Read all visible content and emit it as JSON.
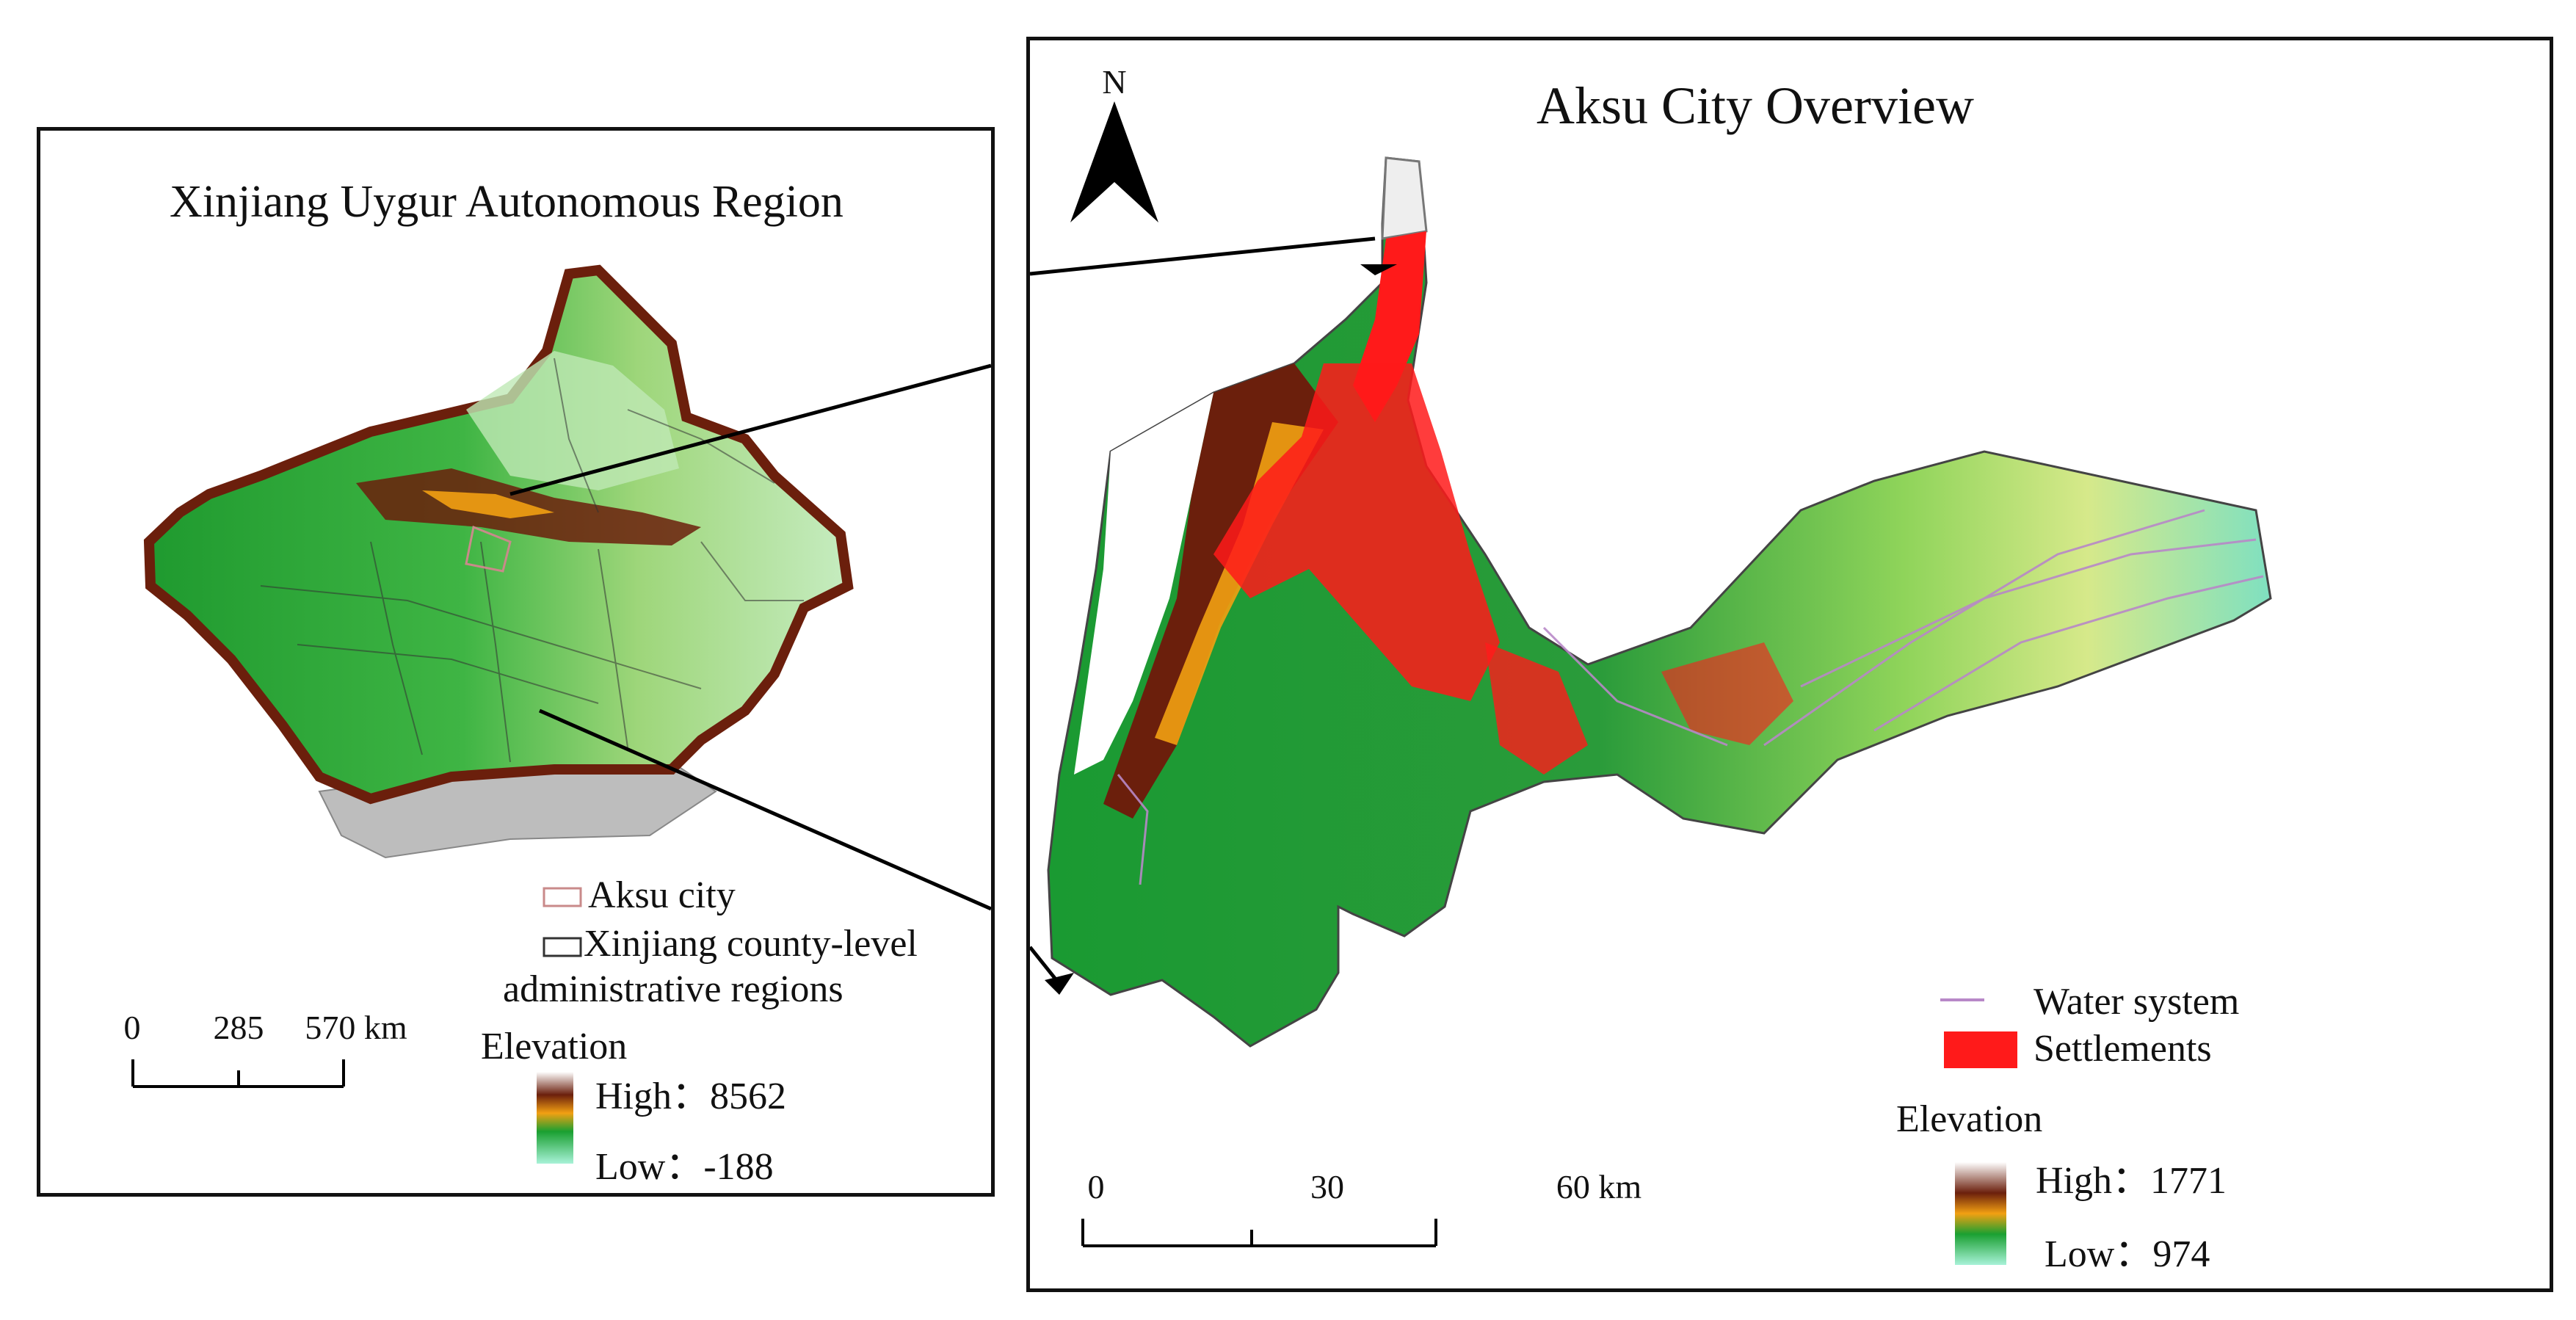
{
  "left_panel": {
    "title": "Xinjiang Uygur Autonomous Region",
    "legend": {
      "aksu_label": "Aksu city",
      "county_label_line1": "Xinjiang county-level",
      "county_label_line2": "administrative regions",
      "elevation_title": "Elevation",
      "high_label": "High：8562",
      "low_label": "Low：-188",
      "aksu_swatch_color": "#c98a8a",
      "county_swatch_color": "#333333"
    },
    "scale_bar": {
      "ticks": [
        "0",
        "285",
        "570 km"
      ]
    }
  },
  "right_panel": {
    "title": "Aksu City Overview",
    "north_label": "N",
    "legend": {
      "water_label": "Water system",
      "settlements_label": "Settlements",
      "elevation_title": "Elevation",
      "high_label": "High：1771",
      "low_label": "Low：974",
      "water_color": "#b888c8",
      "settlement_color": "#ff1a1a"
    },
    "scale_bar": {
      "ticks": [
        "0",
        "30",
        "60 km"
      ]
    }
  },
  "colors": {
    "elev_high": "#ffffff",
    "elev_brown": "#6b1f0c",
    "elev_orange": "#f2a012",
    "elev_green": "#1aa031",
    "elev_low": "#a8f2d8"
  }
}
